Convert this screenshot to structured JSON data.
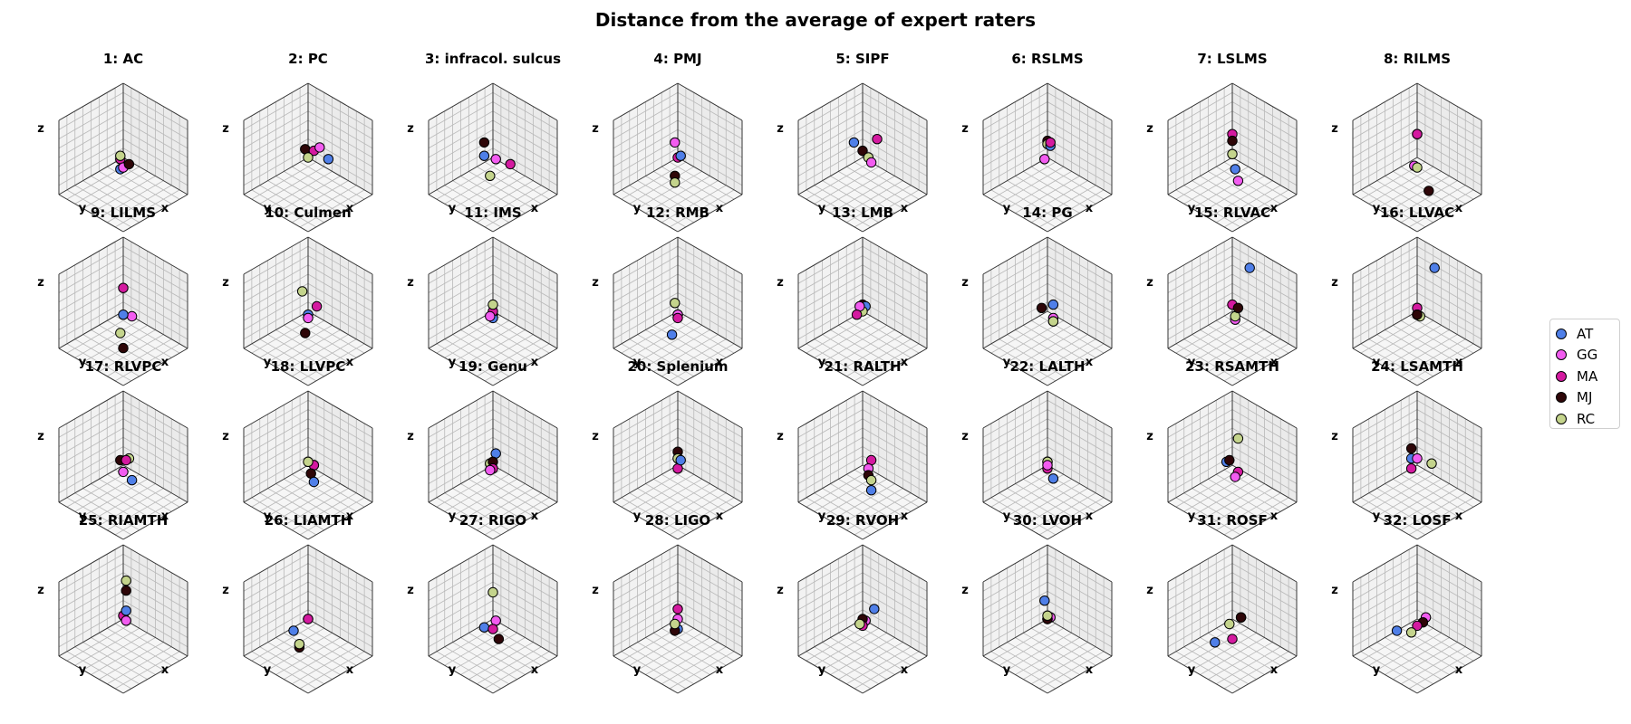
{
  "figure_title": "Distance from the average of expert raters",
  "colors": {
    "AT": "#4f7fe8",
    "GG": "#f25cf0",
    "MA": "#d41aa0",
    "MJ": "#2e0608",
    "RC": "#c4d48c"
  },
  "legend": [
    {
      "key": "AT",
      "label": "AT"
    },
    {
      "key": "GG",
      "label": "GG"
    },
    {
      "key": "MA",
      "label": "MA"
    },
    {
      "key": "MJ",
      "label": "MJ"
    },
    {
      "key": "RC",
      "label": "RC"
    }
  ],
  "chart_data": {
    "type": "scatter",
    "projection": "3d",
    "axis_labels": {
      "x": "x",
      "y": "y",
      "z": "z"
    },
    "series_order": [
      "AT",
      "GG",
      "MA",
      "MJ",
      "RC"
    ],
    "subplots": [
      {
        "title": "1: AC",
        "points": {
          "AT": [
            0.2,
            0.1,
            -0.2
          ],
          "GG": [
            0.2,
            0.2,
            -0.1
          ],
          "MA": [
            0.1,
            0.0,
            0.0
          ],
          "MJ": [
            0.2,
            0.4,
            0.1
          ],
          "RC": [
            0.1,
            0.0,
            0.1
          ]
        }
      },
      {
        "title": "2: PC",
        "points": {
          "AT": [
            -0.2,
            0.5,
            0.1
          ],
          "GG": [
            -0.3,
            0.1,
            0.2
          ],
          "MA": [
            -0.2,
            0.0,
            0.1
          ],
          "MJ": [
            -0.2,
            -0.3,
            0.0
          ],
          "RC": [
            0.0,
            0.0,
            0.0
          ]
        }
      },
      {
        "title": "3: infracol. sulcus",
        "points": {
          "AT": [
            0.3,
            0.0,
            0.2
          ],
          "GG": [
            0.0,
            0.1,
            0.0
          ],
          "MA": [
            -0.1,
            0.5,
            0.0
          ],
          "MJ": [
            0.0,
            -0.3,
            0.3
          ],
          "RC": [
            0.3,
            0.2,
            -0.3
          ]
        }
      },
      {
        "title": "4: PMJ",
        "points": {
          "AT": [
            0.1,
            0.2,
            0.2
          ],
          "GG": [
            -0.1,
            -0.2,
            0.3
          ],
          "MA": [
            0.0,
            0.0,
            0.0
          ],
          "MJ": [
            0.2,
            0.1,
            -0.4
          ],
          "RC": [
            0.3,
            0.2,
            -0.5
          ]
        }
      },
      {
        "title": "5: SIPF",
        "points": {
          "AT": [
            0.3,
            0.0,
            0.6
          ],
          "GG": [
            0.2,
            0.5,
            0.2
          ],
          "MA": [
            -0.7,
            -0.2,
            0.1
          ],
          "MJ": [
            0.2,
            0.2,
            0.4
          ],
          "RC": [
            0.2,
            0.4,
            0.3
          ]
        }
      },
      {
        "title": "6: RSLMS",
        "points": {
          "AT": [
            0.0,
            0.1,
            0.4
          ],
          "GG": [
            -0.1,
            -0.2,
            -0.2
          ],
          "MA": [
            0.0,
            0.1,
            0.5
          ],
          "MJ": [
            -0.1,
            -0.1,
            0.4
          ],
          "RC": [
            0.0,
            0.0,
            0.4
          ]
        }
      },
      {
        "title": "7: LSLMS",
        "points": {
          "AT": [
            0.4,
            0.5,
            0.1
          ],
          "GG": [
            0.2,
            0.4,
            -0.4
          ],
          "MA": [
            -0.1,
            -0.1,
            0.6
          ],
          "MJ": [
            0.0,
            0.0,
            0.5
          ],
          "RC": [
            0.2,
            0.2,
            0.3
          ]
        }
      },
      {
        "title": "8: RILMS",
        "points": {
          "AT": [
            0.0,
            0.0,
            0.7
          ],
          "GG": [
            0.0,
            -0.1,
            -0.3
          ],
          "MA": [
            0.0,
            0.0,
            0.7
          ],
          "MJ": [
            0.2,
            0.6,
            -0.6
          ],
          "RC": [
            0.2,
            0.2,
            -0.1
          ]
        }
      },
      {
        "title": "9: LILMS",
        "points": {
          "AT": [
            0.3,
            0.3,
            0.2
          ],
          "GG": [
            -0.3,
            0.0,
            -0.3
          ],
          "MA": [
            -0.4,
            -0.4,
            0.3
          ],
          "MJ": [
            0.5,
            0.5,
            -0.6
          ],
          "RC": [
            0.4,
            0.3,
            -0.3
          ]
        }
      },
      {
        "title": "10: Culmen",
        "points": {
          "AT": [
            0.1,
            0.1,
            0.0
          ],
          "GG": [
            0.2,
            0.2,
            0.0
          ],
          "MA": [
            -0.3,
            0.0,
            0.0
          ],
          "MJ": [
            0.2,
            0.1,
            -0.5
          ],
          "RC": [
            0.0,
            -0.2,
            0.5
          ]
        }
      },
      {
        "title": "11: IMS",
        "points": {
          "AT": [
            0.1,
            0.1,
            -0.1
          ],
          "GG": [
            0.2,
            0.1,
            0.0
          ],
          "MA": [
            0.1,
            0.1,
            0.1
          ],
          "MJ": [
            -0.1,
            -0.1,
            -0.2
          ],
          "RC": [
            0.1,
            0.1,
            0.3
          ]
        }
      },
      {
        "title": "12: RMB",
        "points": {
          "AT": [
            0.2,
            0.0,
            -0.6
          ],
          "GG": [
            0.0,
            0.0,
            -0.1
          ],
          "MA": [
            0.0,
            0.0,
            -0.2
          ],
          "MJ": [
            -0.1,
            -0.1,
            -0.2
          ],
          "RC": [
            0.0,
            -0.1,
            0.2
          ]
        }
      },
      {
        "title": "13: LMB",
        "points": {
          "AT": [
            -0.2,
            -0.1,
            0.0
          ],
          "GG": [
            0.1,
            0.0,
            0.2
          ],
          "MA": [
            0.3,
            0.1,
            0.1
          ],
          "MJ": [
            -0.2,
            -0.2,
            0.0
          ],
          "RC": [
            0.0,
            0.0,
            0.0
          ]
        }
      },
      {
        "title": "14: PG",
        "points": {
          "AT": [
            0.0,
            0.2,
            0.3
          ],
          "GG": [
            0.1,
            0.3,
            0.0
          ],
          "MA": [
            0.2,
            0.4,
            0.0
          ],
          "MJ": [
            -0.2,
            -0.4,
            -0.2
          ],
          "RC": [
            0.2,
            0.4,
            0.0
          ]
        }
      },
      {
        "title": "15: RLVAC",
        "points": {
          "AT": [
            -1.6,
            -1.0,
            0.0
          ],
          "GG": [
            0.1,
            0.2,
            -0.1
          ],
          "MA": [
            0.0,
            0.0,
            0.2
          ],
          "MJ": [
            0.1,
            0.3,
            0.3
          ],
          "RC": [
            0.1,
            0.2,
            0.0
          ]
        }
      },
      {
        "title": "16: LLVAC",
        "points": {
          "AT": [
            -1.6,
            -1.0,
            0.0
          ],
          "GG": [
            0.1,
            0.1,
            0.0
          ],
          "MA": [
            0.0,
            0.0,
            0.1
          ],
          "MJ": [
            0.3,
            0.3,
            0.2
          ],
          "RC": [
            0.1,
            0.2,
            0.0
          ]
        }
      },
      {
        "title": "17: RLVPC",
        "points": {
          "AT": [
            0.3,
            0.6,
            0.0
          ],
          "GG": [
            0.1,
            0.1,
            -0.1
          ],
          "MA": [
            -0.1,
            0.0,
            0.1
          ],
          "MJ": [
            -0.1,
            -0.2,
            0.0
          ],
          "RC": [
            -0.3,
            -0.1,
            0.0
          ]
        }
      },
      {
        "title": "18: LLVPC",
        "points": {
          "AT": [
            0.4,
            0.6,
            0.0
          ],
          "GG": [
            -0.2,
            0.0,
            -0.1
          ],
          "MA": [
            -0.2,
            0.0,
            -0.1
          ],
          "MJ": [
            0.2,
            0.3,
            0.0
          ],
          "RC": [
            0.0,
            0.0,
            0.1
          ]
        }
      },
      {
        "title": "19: Genu",
        "points": {
          "AT": [
            -0.2,
            -0.1,
            0.2
          ],
          "GG": [
            0.2,
            0.1,
            0.0
          ],
          "MA": [
            0.1,
            0.1,
            0.0
          ],
          "MJ": [
            0.0,
            0.0,
            0.1
          ],
          "RC": [
            0.0,
            -0.1,
            0.0
          ]
        }
      },
      {
        "title": "20: Splenium",
        "points": {
          "AT": [
            0.0,
            0.1,
            0.2
          ],
          "GG": [
            0.0,
            0.0,
            0.2
          ],
          "MA": [
            0.0,
            0.0,
            -0.1
          ],
          "MJ": [
            -0.4,
            -0.4,
            0.0
          ],
          "RC": [
            0.0,
            0.0,
            0.2
          ]
        }
      },
      {
        "title": "21: RALTH",
        "points": {
          "AT": [
            0.6,
            0.9,
            0.0
          ],
          "GG": [
            0.0,
            0.2,
            0.0
          ],
          "MA": [
            -0.3,
            0.0,
            0.0
          ],
          "MJ": [
            0.2,
            0.4,
            0.0
          ],
          "RC": [
            0.3,
            0.6,
            0.0
          ]
        }
      },
      {
        "title": "22: LALTH",
        "points": {
          "AT": [
            0.3,
            0.5,
            0.0
          ],
          "GG": [
            0.1,
            0.1,
            0.1
          ],
          "MA": [
            0.0,
            0.0,
            -0.1
          ],
          "MJ": [
            0.0,
            0.0,
            0.1
          ],
          "RC": [
            0.0,
            0.0,
            0.1
          ]
        }
      },
      {
        "title": "23: RSAMTH",
        "points": {
          "AT": [
            -0.6,
            -0.8,
            -0.6
          ],
          "GG": [
            0.3,
            0.4,
            0.0
          ],
          "MA": [
            0.1,
            0.3,
            0.0
          ],
          "MJ": [
            -0.6,
            -0.7,
            -0.5
          ],
          "RC": [
            -0.9,
            -0.7,
            0.0
          ]
        }
      },
      {
        "title": "24: LSAMTH",
        "points": {
          "AT": [
            -0.4,
            -0.6,
            -0.3
          ],
          "GG": [
            0.0,
            0.0,
            0.2
          ],
          "MA": [
            0.2,
            0.0,
            0.0
          ],
          "MJ": [
            -0.6,
            -0.8,
            -0.2
          ],
          "RC": [
            -0.6,
            -0.1,
            -0.3
          ]
        }
      },
      {
        "title": "25: RIAMTH",
        "points": {
          "AT": [
            0.1,
            0.2,
            0.4
          ],
          "GG": [
            -0.1,
            0.0,
            -0.1
          ],
          "MA": [
            -0.2,
            -0.2,
            -0.1
          ],
          "MJ": [
            -0.2,
            -0.1,
            0.7
          ],
          "RC": [
            -0.3,
            -0.2,
            0.9
          ]
        }
      },
      {
        "title": "26: LIAMTH",
        "points": {
          "AT": [
            0.7,
            0.2,
            0.1
          ],
          "GG": [
            0.0,
            0.0,
            0.0
          ],
          "MA": [
            0.0,
            0.0,
            0.0
          ],
          "MJ": [
            0.9,
            0.6,
            -0.1
          ],
          "RC": [
            1.0,
            0.7,
            0.1
          ]
        }
      },
      {
        "title": "27: RIGO",
        "points": {
          "AT": [
            0.4,
            0.1,
            0.0
          ],
          "GG": [
            -0.1,
            0.0,
            -0.1
          ],
          "MA": [
            0.3,
            0.3,
            0.0
          ],
          "MJ": [
            0.5,
            0.7,
            0.0
          ],
          "RC": [
            -0.5,
            -0.5,
            0.3
          ]
        }
      },
      {
        "title": "28: LIGO",
        "points": {
          "AT": [
            0.1,
            0.1,
            -0.2
          ],
          "GG": [
            -0.2,
            -0.2,
            -0.2
          ],
          "MA": [
            -0.3,
            -0.3,
            0.0
          ],
          "MJ": [
            0.3,
            0.2,
            -0.1
          ],
          "RC": [
            0.4,
            0.3,
            0.2
          ]
        }
      },
      {
        "title": "29: RVOH",
        "points": {
          "AT": [
            -0.3,
            0.1,
            0.2
          ],
          "GG": [
            -0.1,
            0.0,
            -0.1
          ],
          "MA": [
            0.1,
            0.1,
            -0.1
          ],
          "MJ": [
            0.0,
            0.0,
            0.0
          ],
          "RC": [
            0.2,
            0.1,
            0.0
          ]
        }
      },
      {
        "title": "30: LVOH",
        "points": {
          "AT": [
            -0.5,
            -0.6,
            0.0
          ],
          "GG": [
            -0.2,
            -0.1,
            -0.1
          ],
          "MA": [
            0.0,
            0.0,
            0.0
          ],
          "MJ": [
            0.0,
            0.0,
            0.0
          ],
          "RC": [
            0.0,
            0.0,
            0.1
          ]
        }
      },
      {
        "title": "31: ROSF",
        "points": {
          "AT": [
            1.1,
            0.5,
            0.1
          ],
          "GG": [
            -0.2,
            0.1,
            0.0
          ],
          "MA": [
            0.5,
            0.5,
            -0.1
          ],
          "MJ": [
            -0.2,
            0.1,
            0.0
          ],
          "RC": [
            0.4,
            0.3,
            0.2
          ]
        }
      },
      {
        "title": "32: LOSF",
        "points": {
          "AT": [
            0.9,
            0.2,
            0.2
          ],
          "GG": [
            -0.2,
            0.1,
            0.0
          ],
          "MA": [
            0.2,
            0.2,
            0.0
          ],
          "MJ": [
            0.0,
            0.2,
            0.0
          ],
          "RC": [
            0.6,
            0.4,
            0.1
          ]
        }
      }
    ]
  }
}
